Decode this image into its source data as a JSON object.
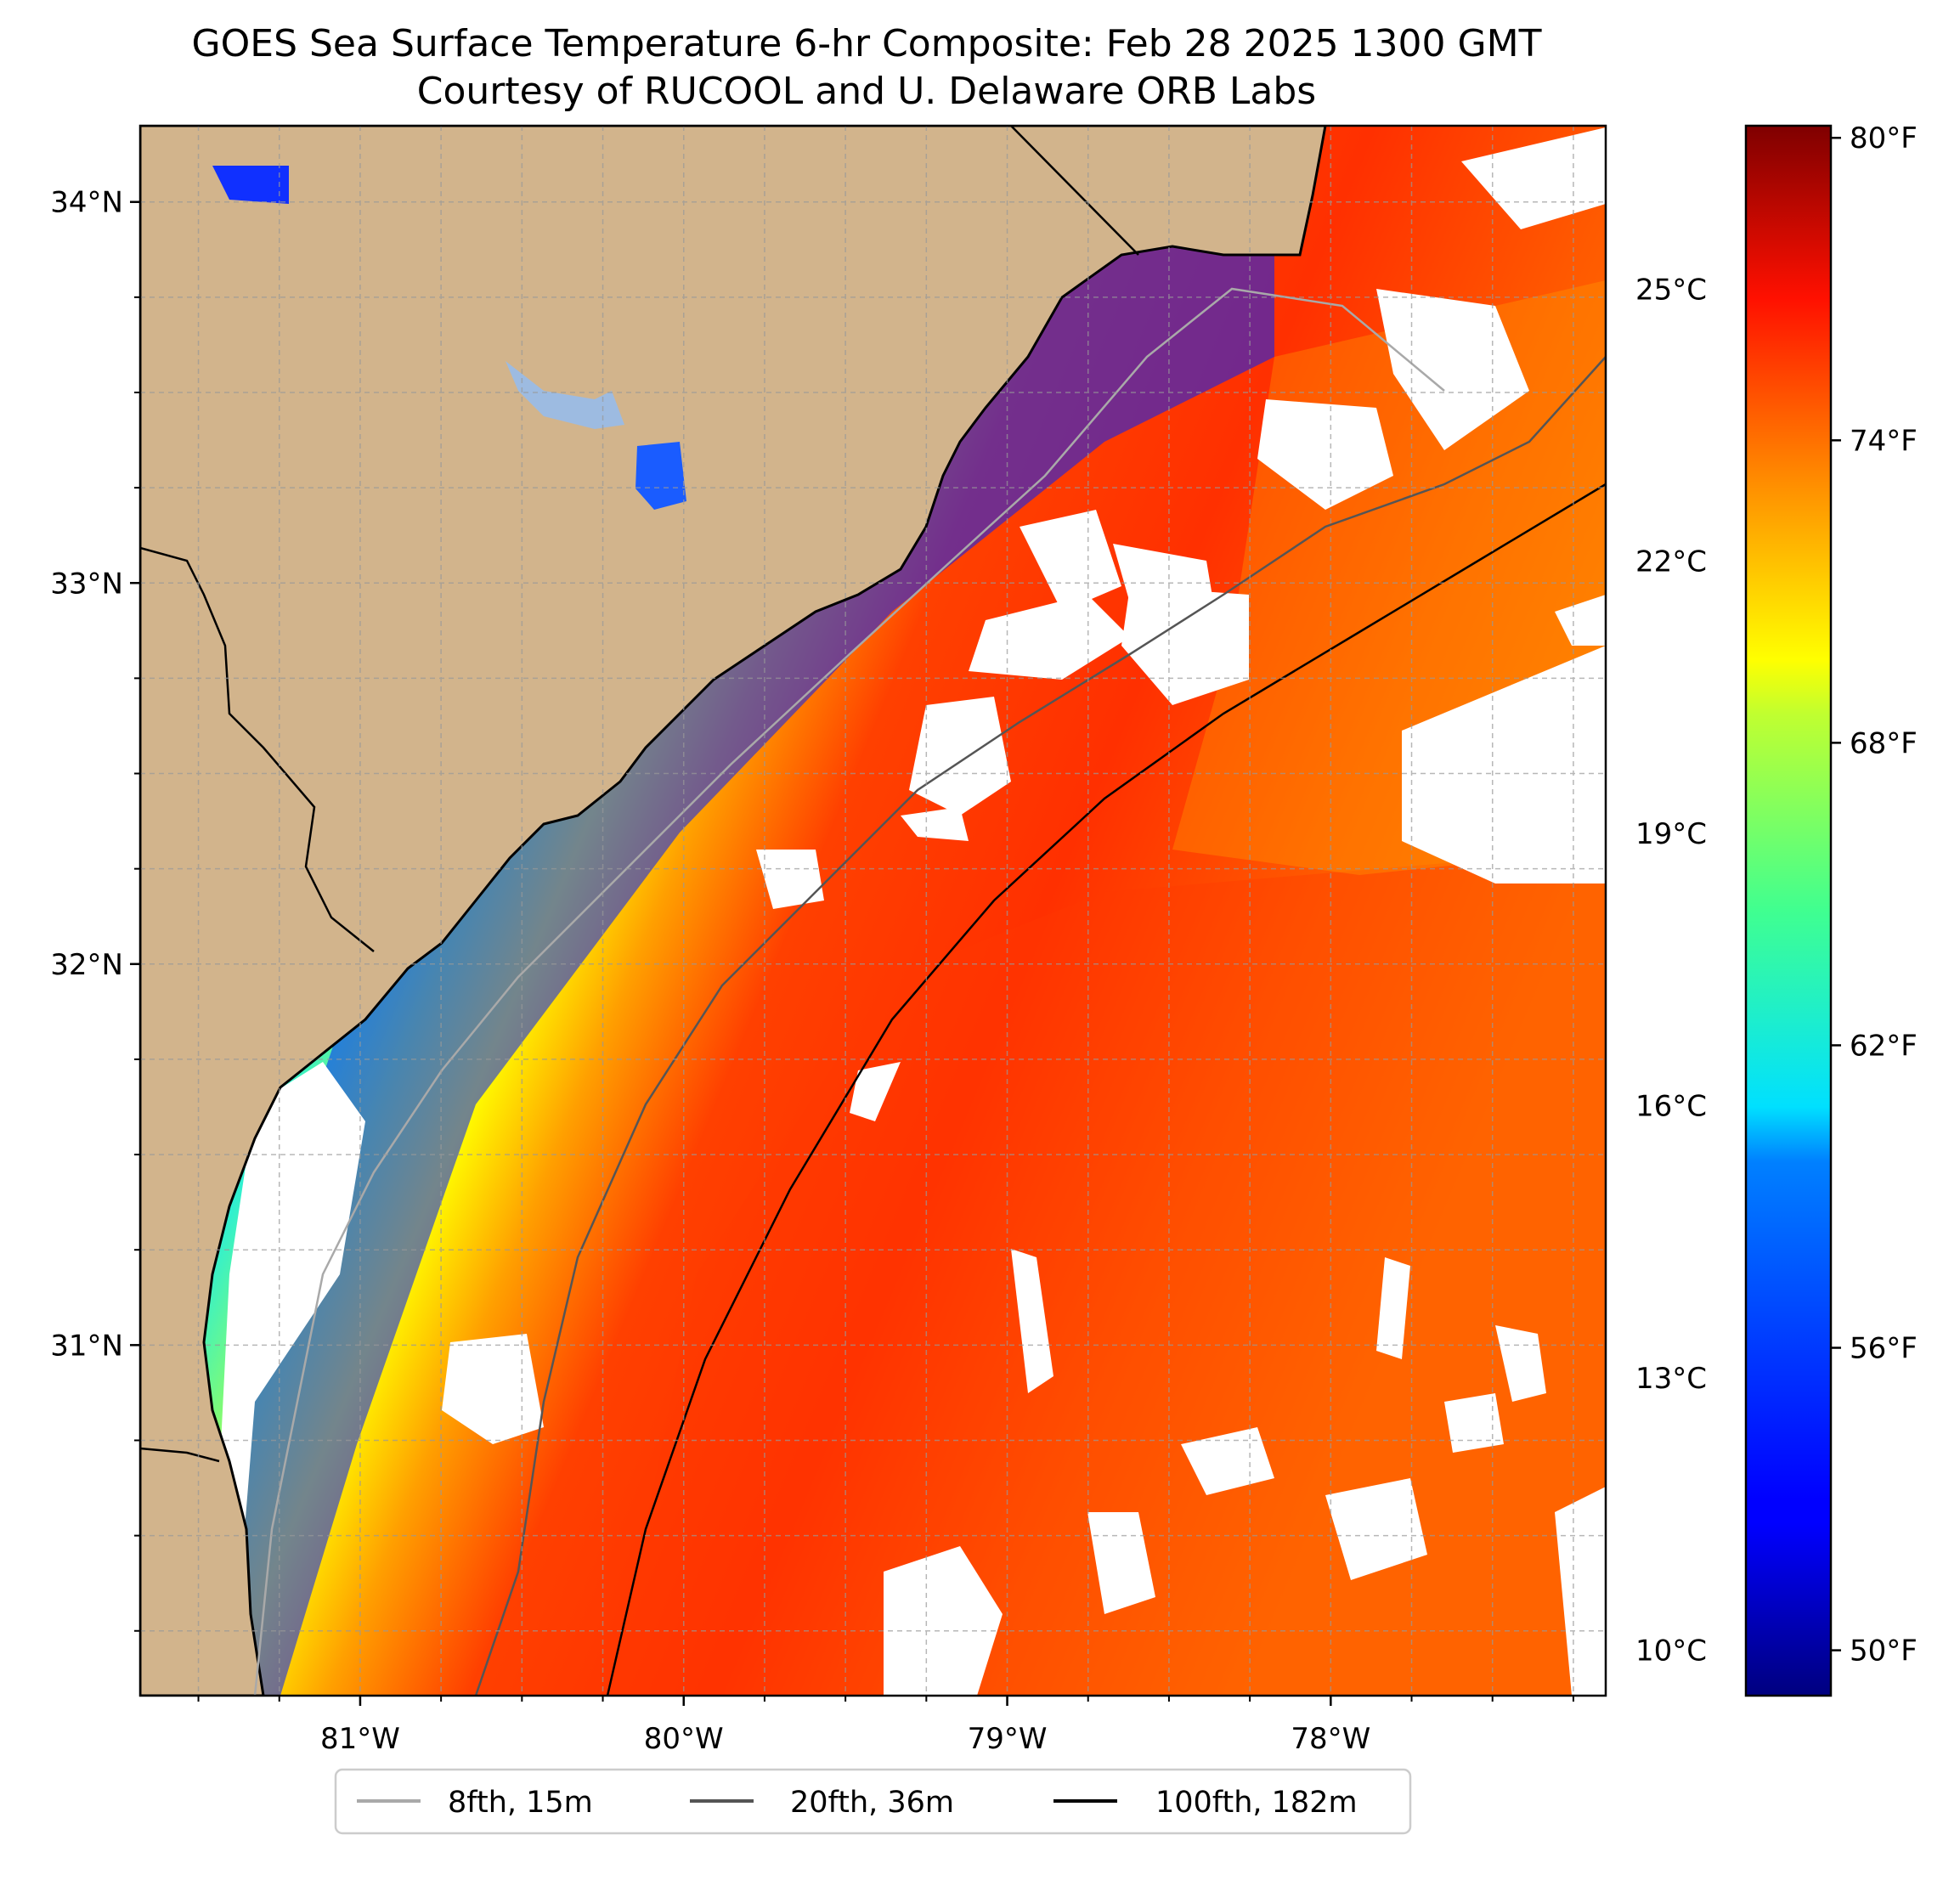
{
  "title": "GOES Sea Surface Temperature 6-hr Composite: Feb 28 2025 1300 GMT",
  "subtitle": "Courtesy of RUCOOL and U. Delaware ORB Labs",
  "map": {
    "lon_range": [
      -81.68,
      -77.15
    ],
    "lat_range": [
      30.08,
      34.2
    ],
    "x_ticks": [
      {
        "lon": -81,
        "label": "81°W"
      },
      {
        "lon": -80,
        "label": "80°W"
      },
      {
        "lon": -79,
        "label": "79°W"
      },
      {
        "lon": -78,
        "label": "78°W"
      }
    ],
    "y_ticks": [
      {
        "lat": 34,
        "label": "34°N"
      },
      {
        "lat": 33,
        "label": "33°N"
      },
      {
        "lat": 32,
        "label": "32°N"
      },
      {
        "lat": 31,
        "label": "31°N"
      }
    ],
    "grid": true,
    "colors": {
      "land": "#d2b48c",
      "no_data": "#ffffff",
      "grid": "#999999"
    }
  },
  "colorbar": {
    "colormap": "jet",
    "range_c": [
      9.5,
      26.8
    ],
    "celsius_ticks": [
      {
        "value": 10,
        "label": "10°C"
      },
      {
        "value": 13,
        "label": "13°C"
      },
      {
        "value": 16,
        "label": "16°C"
      },
      {
        "value": 19,
        "label": "19°C"
      },
      {
        "value": 22,
        "label": "22°C"
      },
      {
        "value": 25,
        "label": "25°C"
      }
    ],
    "fahrenheit_ticks": [
      {
        "value": 50,
        "label": "50°F"
      },
      {
        "value": 56,
        "label": "56°F"
      },
      {
        "value": 62,
        "label": "62°F"
      },
      {
        "value": 68,
        "label": "68°F"
      },
      {
        "value": 74,
        "label": "74°F"
      },
      {
        "value": 80,
        "label": "80°F"
      }
    ]
  },
  "legend": {
    "placement": "bottom-center",
    "items": [
      {
        "label": "8fth, 15m",
        "color": "#a9a9a9"
      },
      {
        "label": "20fth, 36m",
        "color": "#555555"
      },
      {
        "label": "100fth, 182m",
        "color": "#000000"
      }
    ]
  }
}
